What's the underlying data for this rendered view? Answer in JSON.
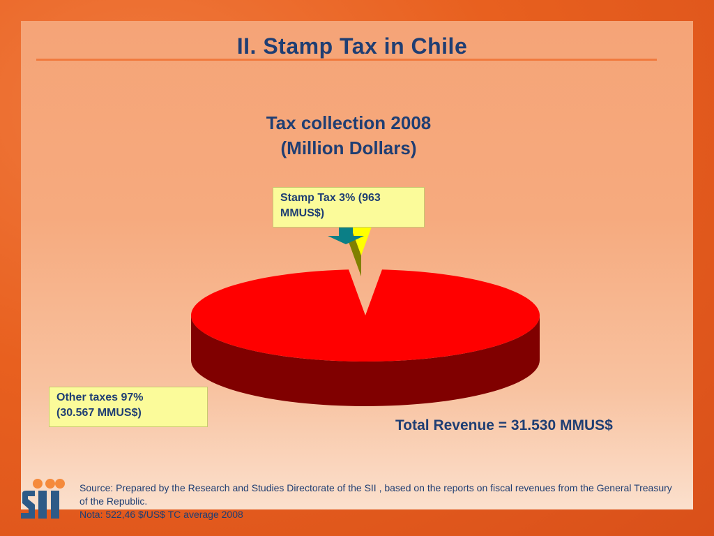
{
  "slide": {
    "title": "II. Stamp Tax in Chile",
    "chart_title_line1": "Tax collection 2008",
    "chart_title_line2": "(Million Dollars)",
    "stamp_label": "Stamp Tax 3% (963 MMUS$)",
    "other_label_line1": "Other taxes 97%",
    "other_label_line2": "(30.567 MMUS$)",
    "total": "Total Revenue = 31.530 MMUS$",
    "source_line1": "Source: Prepared by  the Research and Studies Directorate of the SII , based on  the reports on fiscal revenues from the General Treasury of the Republic.",
    "source_line2": "Nota: 522,46 $/US$ TC average 2008",
    "logo_text": "SII"
  },
  "colors": {
    "title": "#1f3e73",
    "other_slice": "#ff0000",
    "other_slice_side": "#800000",
    "stamp_slice": "#ffff00",
    "stamp_slice_side": "#808000",
    "arrow": "#0b7f86",
    "label_box": "#fbfb9a"
  },
  "chart_data": {
    "type": "pie",
    "title": "Tax collection 2008 (Million Dollars)",
    "categories": [
      "Stamp Tax",
      "Other taxes"
    ],
    "values": [
      963,
      30567
    ],
    "percents": [
      3,
      97
    ],
    "total": 31530,
    "exploded": "Stamp Tax",
    "style": "3d"
  }
}
